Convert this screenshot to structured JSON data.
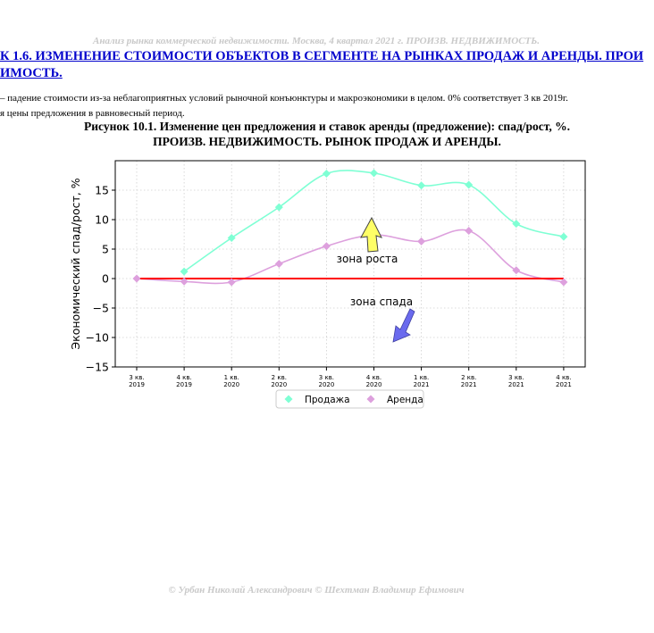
{
  "header": "Анализ рынка коммерческой недвижимости.  Москва,  4 квартал 2021 г.  ПРОИЗВ. НЕДВИЖИМОСТЬ.",
  "section_title_line1": "К 1.6. ИЗМЕНЕНИЕ СТОИМОСТИ ОБЪЕКТОВ В СЕГМЕНТЕ НА РЫНКАХ ПРОДАЖ И АРЕНДЫ. ПРОИ",
  "section_title_line2": "ИМОСТЬ.",
  "note_line1": " – падение стоимости из-за неблагоприятных условий рыночной конъюнктуры и макроэкономики в целом. 0% соответствует 3 кв 2019г.",
  "note_line2": "я цены предложения в равновесный период.",
  "figure_caption_line1": "Рисунок 10.1. Изменение цен предложения и ставок аренды (предложение): спад/рост, %.",
  "figure_caption_line2": "ПРОИЗВ. НЕДВИЖИМОСТЬ. РЫНОК ПРОДАЖ И АРЕНДЫ.",
  "footer": "© Урбан Николай Александрович  © Шехтман Владимир Ефимович",
  "chart_data": {
    "type": "line",
    "ylabel": "Экономический спад/рост, %",
    "xlabel": "",
    "ylim": [
      -15,
      20
    ],
    "yticks": [
      -15,
      -10,
      -5,
      0,
      5,
      10,
      15
    ],
    "grid": true,
    "legend_position": "bottom-center",
    "categories": [
      [
        "3 кв.",
        "2019"
      ],
      [
        "4 кв.",
        "2019"
      ],
      [
        "1 кв.",
        "2020"
      ],
      [
        "2 кв.",
        "2020"
      ],
      [
        "3 кв.",
        "2020"
      ],
      [
        "4 кв.",
        "2020"
      ],
      [
        "1 кв.",
        "2021"
      ],
      [
        "2 кв.",
        "2021"
      ],
      [
        "3 кв.",
        "2021"
      ],
      [
        "4 кв.",
        "2021"
      ]
    ],
    "series": [
      {
        "name": "Продажа",
        "color": "#7fffd4",
        "values": [
          null,
          1.2,
          6.9,
          12.1,
          17.8,
          17.9,
          15.8,
          15.9,
          9.3,
          7.1
        ]
      },
      {
        "name": "Аренда",
        "color": "#dda0dd",
        "values": [
          0,
          -0.5,
          -0.6,
          2.5,
          5.5,
          7.4,
          6.3,
          8.1,
          1.4,
          -0.6
        ]
      }
    ],
    "baseline": {
      "value": 0,
      "color": "#ff0000"
    },
    "annotations": [
      {
        "text": "зона роста",
        "color": "#ffff66",
        "icon": "arrow-up"
      },
      {
        "text": "зона спада",
        "color": "#6a6aee",
        "icon": "arrow-down"
      }
    ]
  }
}
